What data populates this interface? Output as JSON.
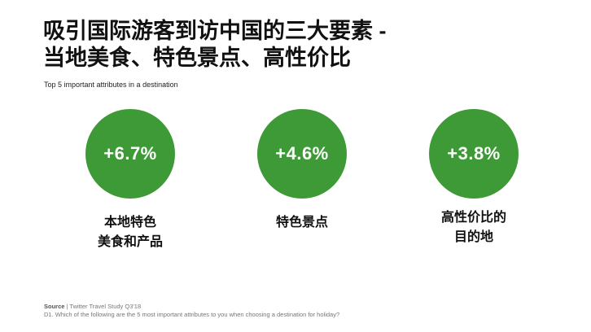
{
  "slide": {
    "title_line1": "吸引国际游客到访中国的三大要素 -",
    "title_line2": "当地美食、特色景点、高性价比",
    "subtitle": "Top 5 important attributes in a destination"
  },
  "stats": [
    {
      "value": "+6.7%",
      "label_lines": [
        "本地特色",
        "美食和产品"
      ]
    },
    {
      "value": "+4.6%",
      "label_lines": [
        "特色景点"
      ]
    },
    {
      "value": "+3.8%",
      "label_lines": [
        "高性价比的",
        "目的地"
      ]
    }
  ],
  "footer": {
    "source_key": "Source",
    "source_text": "| Twitter Travel Study Q3'18",
    "question": "D1. Which of the following are the 5 most important attributes to you when choosing a destination for holiday?"
  },
  "colors": {
    "circle_green": "#3d9a36"
  }
}
